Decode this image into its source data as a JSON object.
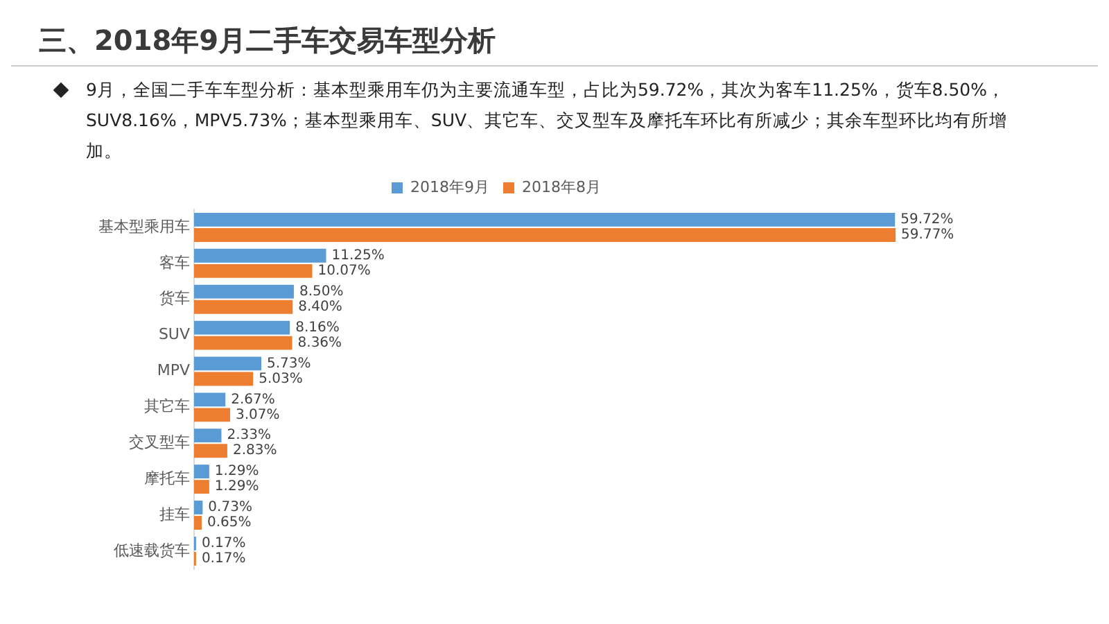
{
  "chart_data": {
    "type": "bar",
    "orientation": "horizontal",
    "title": "三、2018年9月二手车交易车型分析",
    "subtitle": "9月，全国二手车车型分析：基本型乘用车仍为主要流通车型，占比为59.72%，其次为客车11.25%，货车8.50%，SUV8.16%，MPV5.73%；基本型乘用车、SUV、其它车、交叉型车及摩托车环比有所减少；其余车型环比均有所增加。",
    "categories": [
      "基本型乘用车",
      "客车",
      "货车",
      "SUV",
      "MPV",
      "其它车",
      "交叉型车",
      "摩托车",
      "挂车",
      "低速载货车"
    ],
    "series": [
      {
        "name": "2018年9月",
        "color": "#5b9bd5",
        "values": [
          59.72,
          11.25,
          8.5,
          8.16,
          5.73,
          2.67,
          2.33,
          1.29,
          0.73,
          0.17
        ],
        "value_labels": [
          "59.72%",
          "11.25%",
          "8.50%",
          "8.16%",
          "5.73%",
          "2.67%",
          "2.33%",
          "1.29%",
          "0.73%",
          "0.17%"
        ]
      },
      {
        "name": "2018年8月",
        "color": "#ed7d31",
        "values": [
          59.77,
          10.07,
          8.4,
          8.36,
          5.03,
          3.07,
          2.83,
          1.29,
          0.65,
          0.17
        ],
        "value_labels": [
          "59.77%",
          "10.07%",
          "8.40%",
          "8.36%",
          "5.03%",
          "3.07%",
          "2.83%",
          "1.29%",
          "0.65%",
          "0.17%"
        ]
      }
    ],
    "legend": "top",
    "grid": false,
    "tick_labels": "y"
  }
}
